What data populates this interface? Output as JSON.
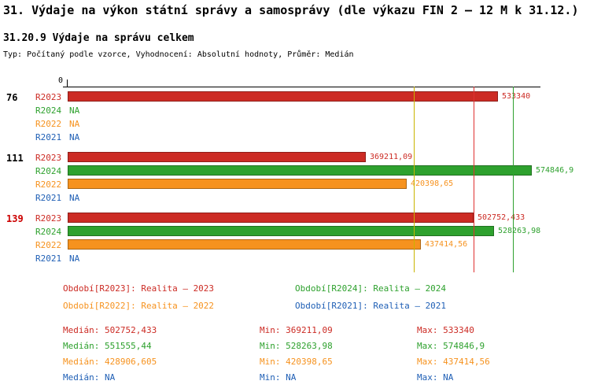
{
  "title": "31. Výdaje na výkon státní správy a samosprávy (dle výkazu FIN 2 – 12 M k 31.12.)",
  "subtitle": "31.20.9 Výdaje na správu celkem",
  "meta": "Typ: Počítaný podle vzorce, Vyhodnocení: Absolutní hodnoty, Průměr: Medián",
  "colors": {
    "series": {
      "R2023": "#cc2b24",
      "R2024": "#2ea12e",
      "R2022": "#f6921e",
      "R2021": "#1f5fb5"
    },
    "axis": "#000000",
    "group_label_highlight": "#cc0000"
  },
  "chart_data": {
    "type": "bar",
    "orientation": "horizontal",
    "x_origin_label": "0",
    "series_order": [
      "R2023",
      "R2024",
      "R2022",
      "R2021"
    ],
    "groups": [
      {
        "label": "76",
        "label_color": "#000000",
        "rows": [
          {
            "series": "R2023",
            "value": 533340,
            "display": "533340"
          },
          {
            "series": "R2024",
            "value": null,
            "display": "NA"
          },
          {
            "series": "R2022",
            "value": null,
            "display": "NA"
          },
          {
            "series": "R2021",
            "value": null,
            "display": "NA"
          }
        ]
      },
      {
        "label": "111",
        "label_color": "#000000",
        "rows": [
          {
            "series": "R2023",
            "value": 369211.09,
            "display": "369211,09"
          },
          {
            "series": "R2024",
            "value": 574846.9,
            "display": "574846,9"
          },
          {
            "series": "R2022",
            "value": 420398.65,
            "display": "420398,65"
          },
          {
            "series": "R2021",
            "value": null,
            "display": "NA"
          }
        ]
      },
      {
        "label": "139",
        "label_color": "#cc0000",
        "rows": [
          {
            "series": "R2023",
            "value": 502752.433,
            "display": "502752,433"
          },
          {
            "series": "R2024",
            "value": 528263.98,
            "display": "528263,98"
          },
          {
            "series": "R2022",
            "value": 437414.56,
            "display": "437414,56"
          },
          {
            "series": "R2021",
            "value": null,
            "display": "NA"
          }
        ]
      }
    ],
    "median_lines": [
      {
        "series": "R2022",
        "value": 428906.605,
        "color": "#c9b400"
      },
      {
        "series": "R2023",
        "value": 502752.433,
        "color": "#e03131"
      },
      {
        "series": "R2024",
        "value": 551555.44,
        "color": "#2ea12e"
      }
    ]
  },
  "legend": [
    {
      "series": "R2023",
      "label": "Období[R2023]: Realita – 2023"
    },
    {
      "series": "R2024",
      "label": "Období[R2024]: Realita – 2024"
    },
    {
      "series": "R2022",
      "label": "Období[R2022]: Realita – 2022"
    },
    {
      "series": "R2021",
      "label": "Období[R2021]: Realita – 2021"
    }
  ],
  "stat_labels": {
    "median": "Medián",
    "min": "Min",
    "max": "Max"
  },
  "stats": [
    {
      "series": "R2023",
      "median": "502752,433",
      "min": "369211,09",
      "max": "533340"
    },
    {
      "series": "R2024",
      "median": "551555,44",
      "min": "528263,98",
      "max": "574846,9"
    },
    {
      "series": "R2022",
      "median": "428906,605",
      "min": "420398,65",
      "max": "437414,56"
    },
    {
      "series": "R2021",
      "median": "NA",
      "min": "NA",
      "max": "NA"
    }
  ]
}
